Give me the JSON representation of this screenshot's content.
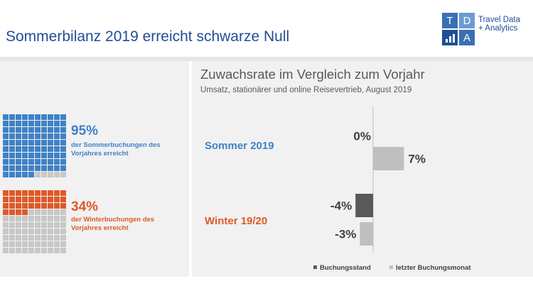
{
  "title": "Sommerbilanz 2019 erreicht schwarze Null",
  "logo": {
    "letters": [
      "T",
      "D",
      "A"
    ],
    "line1": "Travel Data",
    "line2": "+ Analytics"
  },
  "colors": {
    "blue": "#3f82c6",
    "orange": "#de5a27",
    "grey_cell": "#c8c8c8",
    "dark_bar": "#595959",
    "light_bar": "#bfbfbf",
    "summer_label": "#3f82c6",
    "winter_label": "#de5a27"
  },
  "summary": {
    "summer": {
      "value": "95%",
      "percent": 95,
      "description": "der Sommerbuchungen des Vorjahres erreicht"
    },
    "winter": {
      "value": "34%",
      "percent": 34,
      "description": "der Winterbuchungen des Vorjahres erreicht"
    }
  },
  "chart_data": {
    "type": "bar",
    "orientation": "horizontal",
    "title": "Zuwachsrate im Vergleich zum Vorjahr",
    "subtitle": "Umsatz, stationärer und online Reisevertrieb, August 2019",
    "categories": [
      "Sommer 2019",
      "Winter 19/20"
    ],
    "series": [
      {
        "name": "Buchungsstand",
        "values": [
          0,
          -4
        ],
        "labels": [
          "0%",
          "-4%"
        ]
      },
      {
        "name": "letzter Buchungsmonat",
        "values": [
          7,
          -3
        ],
        "labels": [
          "7%",
          "-3%"
        ]
      }
    ],
    "xlim": [
      -10,
      10
    ],
    "legend_position": "bottom"
  }
}
